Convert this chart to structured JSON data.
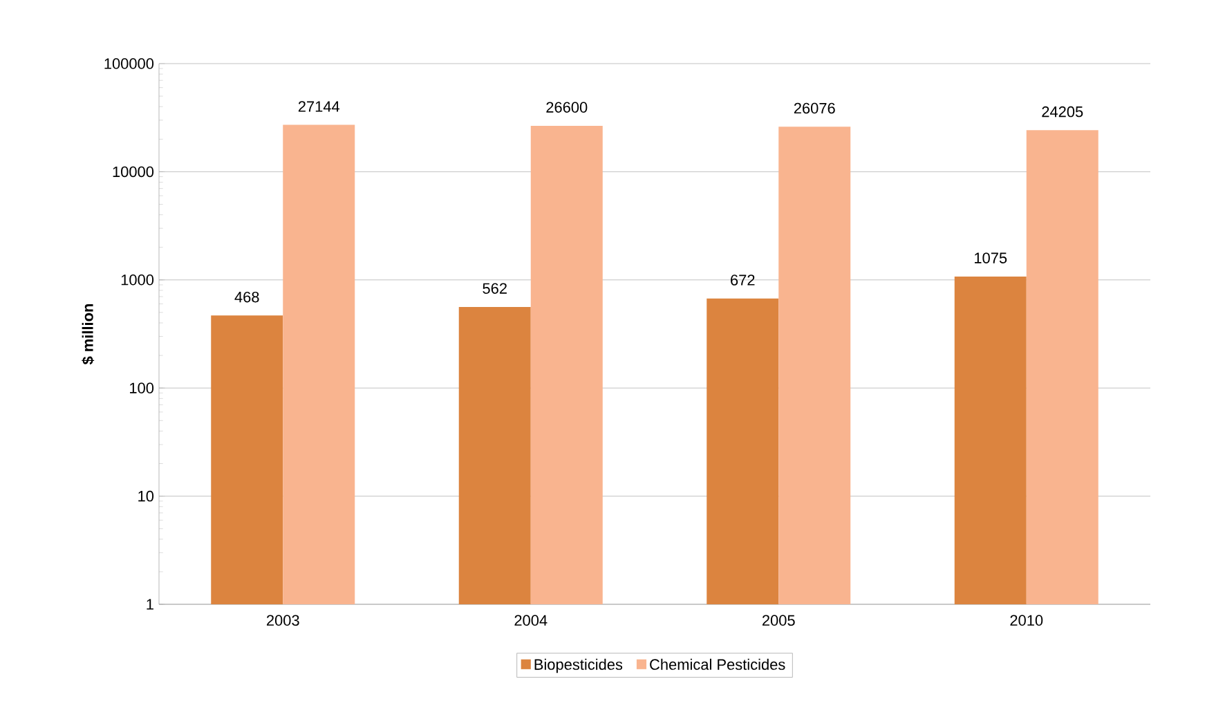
{
  "chart_data": {
    "type": "bar",
    "ylabel": "$ million",
    "categories": [
      "2003",
      "2004",
      "2005",
      "2010"
    ],
    "series": [
      {
        "name": "Biopesticides",
        "color": "#dc843f",
        "values": [
          468,
          562,
          672,
          1075
        ]
      },
      {
        "name": "Chemical Pesticides",
        "color": "#f9b48f",
        "values": [
          27144,
          26600,
          26076,
          24205
        ]
      }
    ],
    "log": "y",
    "ylim": [
      1,
      100000
    ],
    "yticks": [
      1,
      10,
      100,
      1000,
      10000,
      100000
    ],
    "grid": "y",
    "legend": "bottom",
    "data_labels": true
  }
}
